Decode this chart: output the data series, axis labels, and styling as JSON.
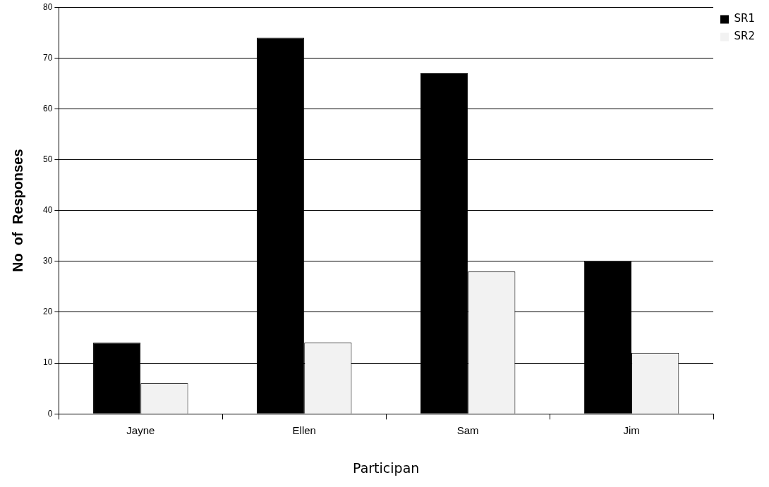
{
  "chart_data": {
    "type": "bar",
    "xlabel": "Participan",
    "ylabel": "No  of  Responses",
    "categories": [
      "Jayne",
      "Ellen",
      "Sam",
      "Jim"
    ],
    "series": [
      {
        "name": "SR1",
        "color": "#000000",
        "values": [
          14,
          74,
          67,
          30
        ]
      },
      {
        "name": "SR2",
        "color": "#f2f2f2",
        "values": [
          6,
          14,
          28,
          12
        ]
      }
    ],
    "ylim": [
      0,
      80
    ],
    "yticks": [
      0,
      10,
      20,
      30,
      40,
      50,
      60,
      70,
      80
    ],
    "grid": "y",
    "legend": "top right"
  }
}
